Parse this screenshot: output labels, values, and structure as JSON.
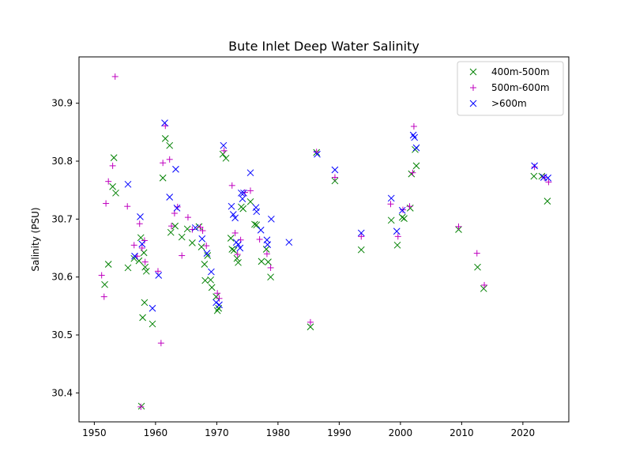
{
  "chart_data": {
    "type": "scatter",
    "title": "Bute Inlet Deep Water Salinity",
    "xlabel": "",
    "ylabel": "Salinity (PSU)",
    "xlim": [
      1947.5,
      2027.5
    ],
    "ylim": [
      30.35,
      30.98
    ],
    "xticks": [
      1950,
      1960,
      1970,
      1980,
      1990,
      2000,
      2010,
      2020
    ],
    "yticks": [
      30.4,
      30.5,
      30.6,
      30.7,
      30.8,
      30.9
    ],
    "ytick_labels": [
      "30.4",
      "30.5",
      "30.6",
      "30.7",
      "30.8",
      "30.9"
    ],
    "grid": false,
    "legend_position": "top-right",
    "series": [
      {
        "name": "400m-500m",
        "marker": "x",
        "color": "#008000",
        "points": [
          [
            1951.7,
            30.587
          ],
          [
            1952.3,
            30.622
          ],
          [
            1953.0,
            30.756
          ],
          [
            1953.2,
            30.806
          ],
          [
            1953.5,
            30.745
          ],
          [
            1955.5,
            30.616
          ],
          [
            1956.5,
            30.632
          ],
          [
            1957.3,
            30.628
          ],
          [
            1957.6,
            30.668
          ],
          [
            1957.7,
            30.377
          ],
          [
            1957.9,
            30.53
          ],
          [
            1958.1,
            30.642
          ],
          [
            1958.2,
            30.556
          ],
          [
            1958.3,
            30.617
          ],
          [
            1958.5,
            30.61
          ],
          [
            1959.5,
            30.519
          ],
          [
            1961.2,
            30.771
          ],
          [
            1961.6,
            30.839
          ],
          [
            1962.3,
            30.827
          ],
          [
            1962.5,
            30.677
          ],
          [
            1963.2,
            30.688
          ],
          [
            1964.3,
            30.669
          ],
          [
            1965.2,
            30.683
          ],
          [
            1966.0,
            30.659
          ],
          [
            1967.1,
            30.687
          ],
          [
            1967.5,
            30.652
          ],
          [
            1968.0,
            30.622
          ],
          [
            1968.1,
            30.594
          ],
          [
            1968.5,
            30.637
          ],
          [
            1969.0,
            30.595
          ],
          [
            1969.2,
            30.582
          ],
          [
            1969.9,
            30.566
          ],
          [
            1970.1,
            30.542
          ],
          [
            1970.3,
            30.546
          ],
          [
            1971.0,
            30.812
          ],
          [
            1971.5,
            30.805
          ],
          [
            1972.3,
            30.667
          ],
          [
            1972.5,
            30.648
          ],
          [
            1972.8,
            30.646
          ],
          [
            1973.3,
            30.632
          ],
          [
            1973.5,
            30.625
          ],
          [
            1974.0,
            30.721
          ],
          [
            1974.3,
            30.718
          ],
          [
            1975.5,
            30.73
          ],
          [
            1976.2,
            30.691
          ],
          [
            1976.5,
            30.69
          ],
          [
            1977.3,
            30.627
          ],
          [
            1978.1,
            30.648
          ],
          [
            1978.4,
            30.626
          ],
          [
            1978.8,
            30.6
          ],
          [
            1985.3,
            30.514
          ],
          [
            1986.3,
            30.815
          ],
          [
            1989.3,
            30.766
          ],
          [
            1993.6,
            30.647
          ],
          [
            1998.5,
            30.698
          ],
          [
            1999.5,
            30.655
          ],
          [
            2000.3,
            30.703
          ],
          [
            2000.6,
            30.701
          ],
          [
            2001.6,
            30.719
          ],
          [
            2001.8,
            30.778
          ],
          [
            2002.4,
            30.82
          ],
          [
            2002.6,
            30.792
          ],
          [
            2009.5,
            30.682
          ],
          [
            2012.6,
            30.617
          ],
          [
            2013.6,
            30.58
          ],
          [
            2021.8,
            30.774
          ],
          [
            2023.1,
            30.774
          ],
          [
            2024.0,
            30.731
          ]
        ]
      },
      {
        "name": "500m-600m",
        "marker": "+",
        "color": "#bf00bf",
        "points": [
          [
            1951.2,
            30.603
          ],
          [
            1951.6,
            30.566
          ],
          [
            1951.9,
            30.727
          ],
          [
            1952.3,
            30.765
          ],
          [
            1953.0,
            30.792
          ],
          [
            1953.4,
            30.946
          ],
          [
            1955.4,
            30.722
          ],
          [
            1956.5,
            30.655
          ],
          [
            1957.0,
            30.636
          ],
          [
            1957.4,
            30.692
          ],
          [
            1957.6,
            30.376
          ],
          [
            1957.8,
            30.65
          ],
          [
            1958.2,
            30.663
          ],
          [
            1958.3,
            30.626
          ],
          [
            1960.4,
            30.61
          ],
          [
            1960.9,
            30.486
          ],
          [
            1961.2,
            30.797
          ],
          [
            1961.6,
            30.861
          ],
          [
            1962.3,
            30.803
          ],
          [
            1962.6,
            30.688
          ],
          [
            1963.1,
            30.71
          ],
          [
            1963.6,
            30.721
          ],
          [
            1964.3,
            30.637
          ],
          [
            1965.3,
            30.703
          ],
          [
            1966.0,
            30.682
          ],
          [
            1967.3,
            30.686
          ],
          [
            1967.7,
            30.68
          ],
          [
            1968.3,
            30.654
          ],
          [
            1970.1,
            30.572
          ],
          [
            1970.4,
            30.563
          ],
          [
            1971.2,
            30.818
          ],
          [
            1972.5,
            30.758
          ],
          [
            1973.0,
            30.676
          ],
          [
            1973.4,
            30.639
          ],
          [
            1973.9,
            30.664
          ],
          [
            1974.6,
            30.746
          ],
          [
            1975.5,
            30.749
          ],
          [
            1977.0,
            30.665
          ],
          [
            1978.2,
            30.64
          ],
          [
            1978.8,
            30.616
          ],
          [
            1985.3,
            30.522
          ],
          [
            1986.3,
            30.816
          ],
          [
            1989.3,
            30.772
          ],
          [
            1993.6,
            30.67
          ],
          [
            1998.4,
            30.726
          ],
          [
            1999.6,
            30.67
          ],
          [
            2000.4,
            30.716
          ],
          [
            2001.5,
            30.722
          ],
          [
            2002.0,
            30.78
          ],
          [
            2002.2,
            30.86
          ],
          [
            2009.5,
            30.687
          ],
          [
            2012.5,
            30.641
          ],
          [
            2013.7,
            30.586
          ],
          [
            2021.9,
            30.79
          ],
          [
            2023.5,
            30.772
          ],
          [
            2024.2,
            30.764
          ]
        ]
      },
      {
        "name": ">600m",
        "marker": "x",
        "color": "#0000ff",
        "points": [
          [
            1955.5,
            30.76
          ],
          [
            1956.6,
            30.636
          ],
          [
            1957.5,
            30.704
          ],
          [
            1957.8,
            30.657
          ],
          [
            1959.5,
            30.546
          ],
          [
            1960.5,
            30.603
          ],
          [
            1961.5,
            30.866
          ],
          [
            1962.3,
            30.738
          ],
          [
            1963.3,
            30.786
          ],
          [
            1963.5,
            30.719
          ],
          [
            1966.5,
            30.685
          ],
          [
            1967.6,
            30.666
          ],
          [
            1968.4,
            30.641
          ],
          [
            1969.1,
            30.609
          ],
          [
            1969.9,
            30.556
          ],
          [
            1970.4,
            30.552
          ],
          [
            1971.1,
            30.827
          ],
          [
            1972.4,
            30.722
          ],
          [
            1972.7,
            30.708
          ],
          [
            1973.0,
            30.702
          ],
          [
            1973.2,
            30.66
          ],
          [
            1973.5,
            30.656
          ],
          [
            1973.8,
            30.65
          ],
          [
            1974.0,
            30.745
          ],
          [
            1974.2,
            30.735
          ],
          [
            1974.4,
            30.745
          ],
          [
            1975.5,
            30.78
          ],
          [
            1976.4,
            30.72
          ],
          [
            1976.5,
            30.713
          ],
          [
            1977.2,
            30.681
          ],
          [
            1978.2,
            30.664
          ],
          [
            1978.3,
            30.656
          ],
          [
            1978.9,
            30.7
          ],
          [
            1981.8,
            30.66
          ],
          [
            1986.4,
            30.812
          ],
          [
            1989.3,
            30.785
          ],
          [
            1993.6,
            30.676
          ],
          [
            1998.5,
            30.736
          ],
          [
            1999.4,
            30.679
          ],
          [
            2000.3,
            30.715
          ],
          [
            2002.1,
            30.845
          ],
          [
            2002.3,
            30.841
          ],
          [
            2002.6,
            30.823
          ],
          [
            2021.9,
            30.792
          ],
          [
            2023.4,
            30.772
          ],
          [
            2024.1,
            30.771
          ]
        ]
      }
    ]
  }
}
